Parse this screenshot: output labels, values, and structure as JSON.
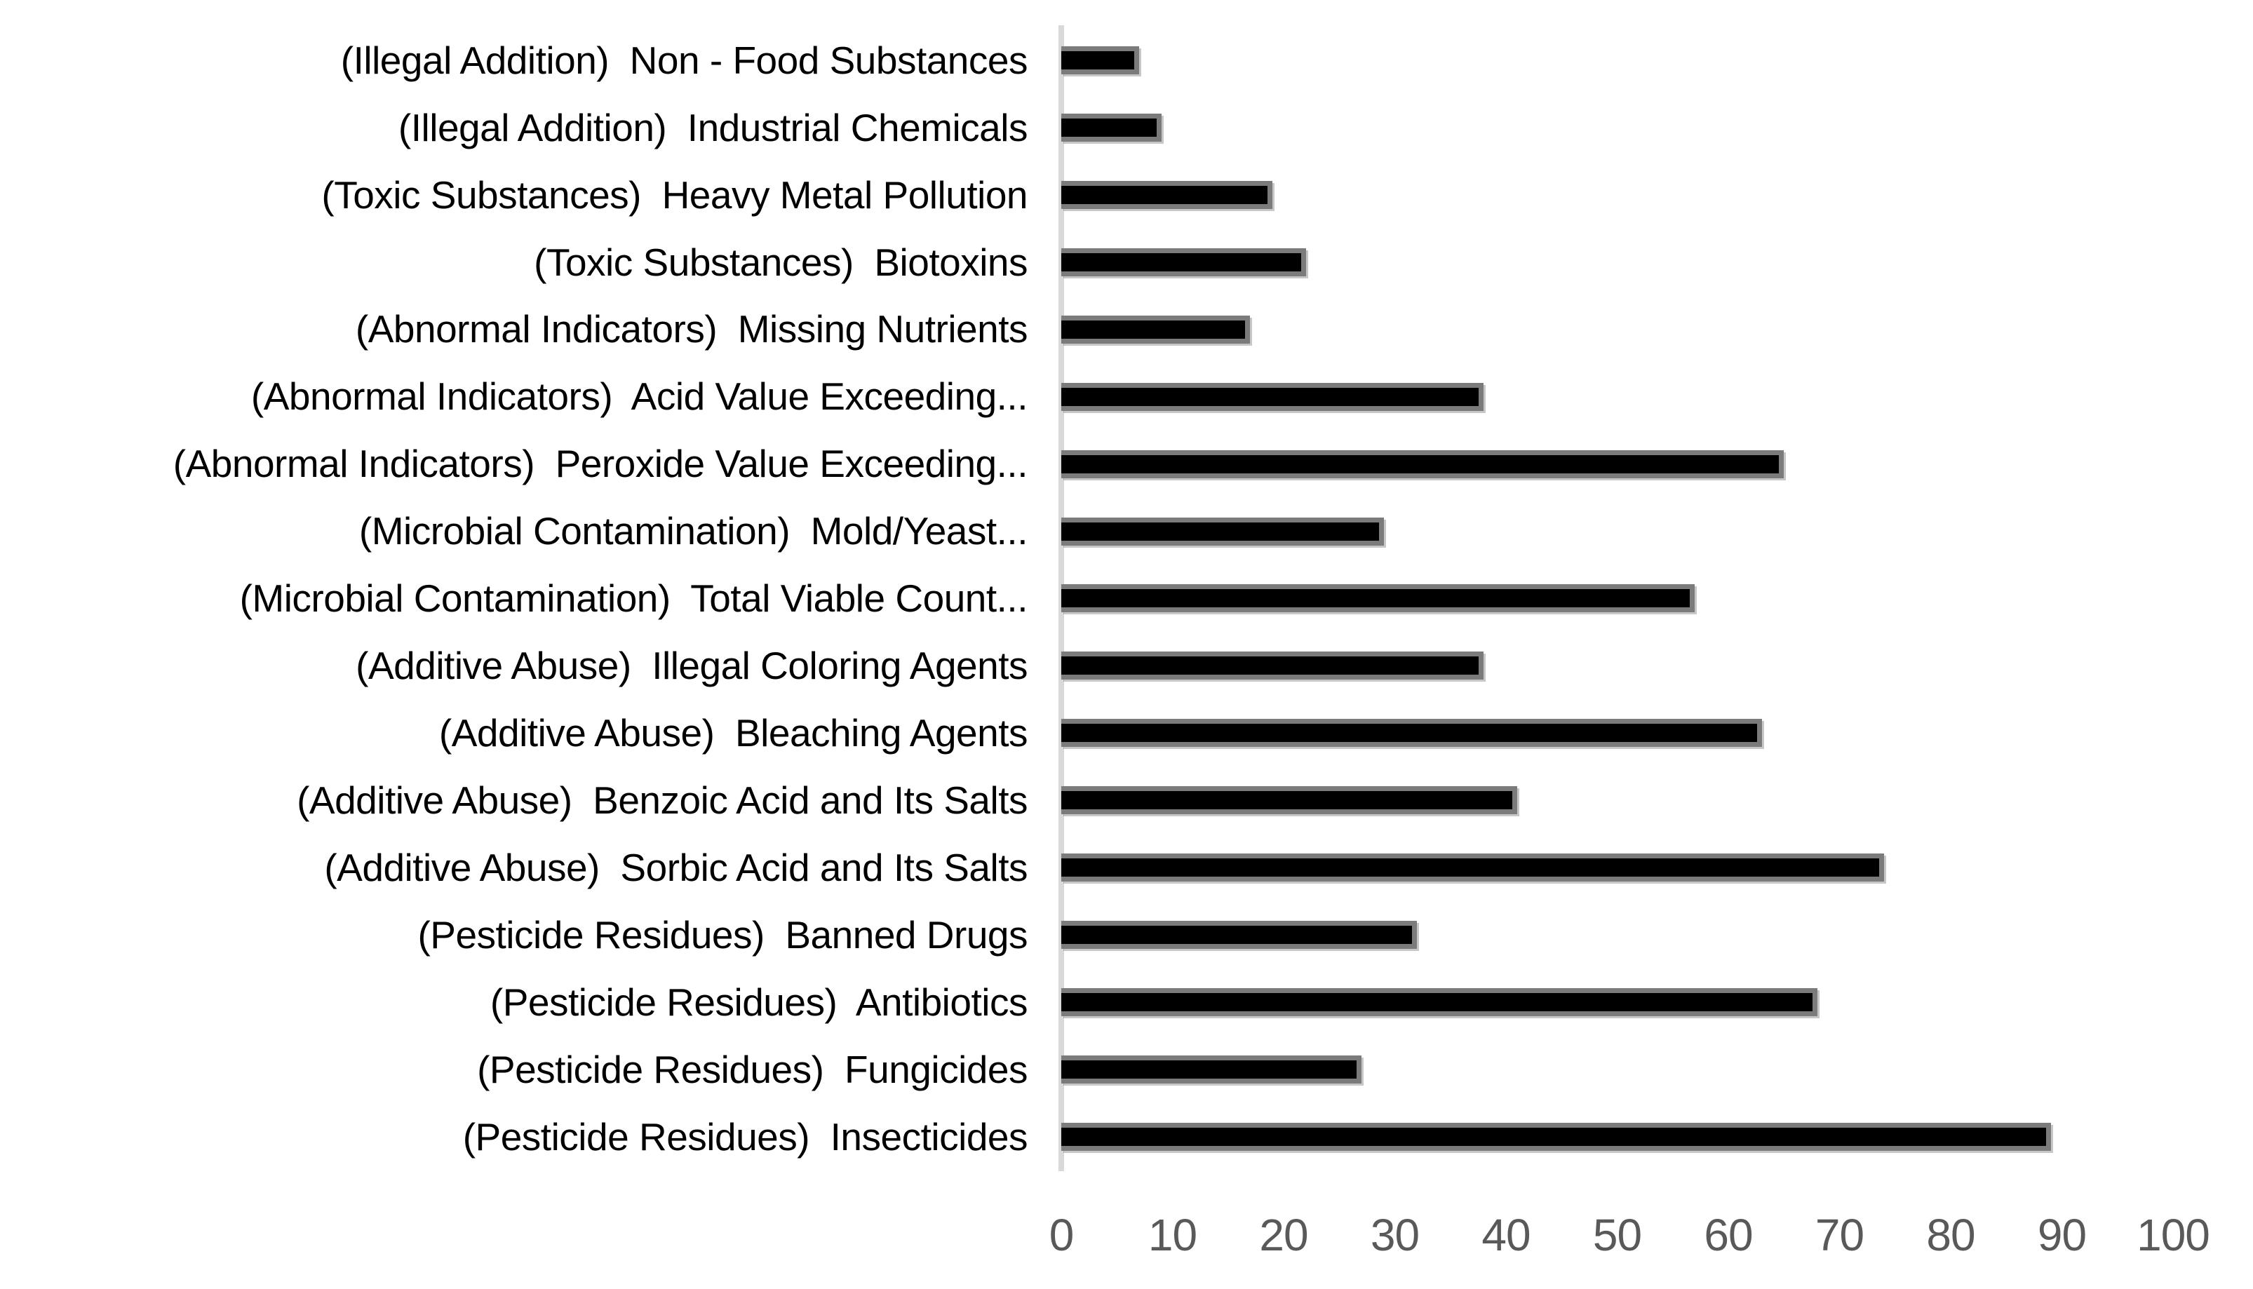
{
  "chart_data": {
    "type": "bar",
    "orientation": "horizontal",
    "title": "",
    "xlabel": "",
    "ylabel": "",
    "categories": [
      "(Illegal Addition)  Non - Food Substances",
      "(Illegal Addition)  Industrial Chemicals",
      "(Toxic Substances)  Heavy Metal Pollution",
      "(Toxic Substances)  Biotoxins",
      "(Abnormal Indicators)  Missing Nutrients",
      "(Abnormal Indicators)  Acid Value Exceeding...",
      "(Abnormal Indicators)  Peroxide Value Exceeding...",
      "(Microbial Contamination)  Mold/Yeast...",
      "(Microbial Contamination)  Total Viable Count...",
      "(Additive Abuse)  Illegal Coloring Agents",
      "(Additive Abuse)  Bleaching Agents",
      "(Additive Abuse)  Benzoic Acid and Its Salts",
      "(Additive Abuse)  Sorbic Acid and Its Salts",
      "(Pesticide Residues)  Banned Drugs",
      "(Pesticide Residues)  Antibiotics",
      "(Pesticide Residues)  Fungicides",
      "(Pesticide Residues)  Insecticides"
    ],
    "values": [
      7,
      9,
      19,
      22,
      17,
      38,
      65,
      29,
      57,
      38,
      63,
      41,
      74,
      32,
      68,
      27,
      89
    ],
    "xlim": [
      0,
      100
    ],
    "x_ticks": [
      0,
      10,
      20,
      30,
      40,
      50,
      60,
      70,
      80,
      90,
      100
    ],
    "grid": false,
    "legend": false,
    "colors": {
      "bar_fill": "#000000",
      "bar_border": "#7b7b7b",
      "axis_line": "#d9d9d9",
      "tick_text": "#595959",
      "label_text": "#000000",
      "background": "#ffffff"
    }
  }
}
